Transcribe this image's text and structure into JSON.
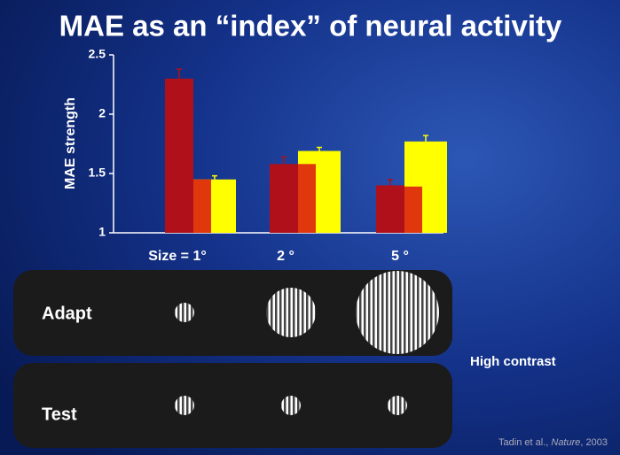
{
  "chart_data": {
    "type": "bar",
    "title": "MAE as an “index” of neural activity",
    "y_label": "MAE strength",
    "categories": [
      "Size = 1°",
      "2 °",
      "5 °"
    ],
    "series": [
      {
        "color": "#b0101a",
        "values": [
          2.3,
          1.58,
          1.4
        ],
        "errors": [
          0.08,
          0.06,
          0.05
        ]
      },
      {
        "color": "#ffff00",
        "values": [
          1.45,
          1.69,
          1.77
        ],
        "errors": [
          0.03,
          0.03,
          0.05
        ]
      },
      {
        "color": "#e0380c",
        "values": [
          1.45,
          1.58,
          1.39
        ]
      }
    ],
    "ylim": [
      1,
      2.5
    ],
    "yticks": [
      1,
      1.5,
      2,
      2.5
    ]
  },
  "panels": {
    "adapt": "Adapt",
    "test": "Test",
    "note": "High contrast"
  },
  "citation": {
    "authors": "Tadin et al., ",
    "journal": "Nature",
    "year": ", 2003"
  }
}
